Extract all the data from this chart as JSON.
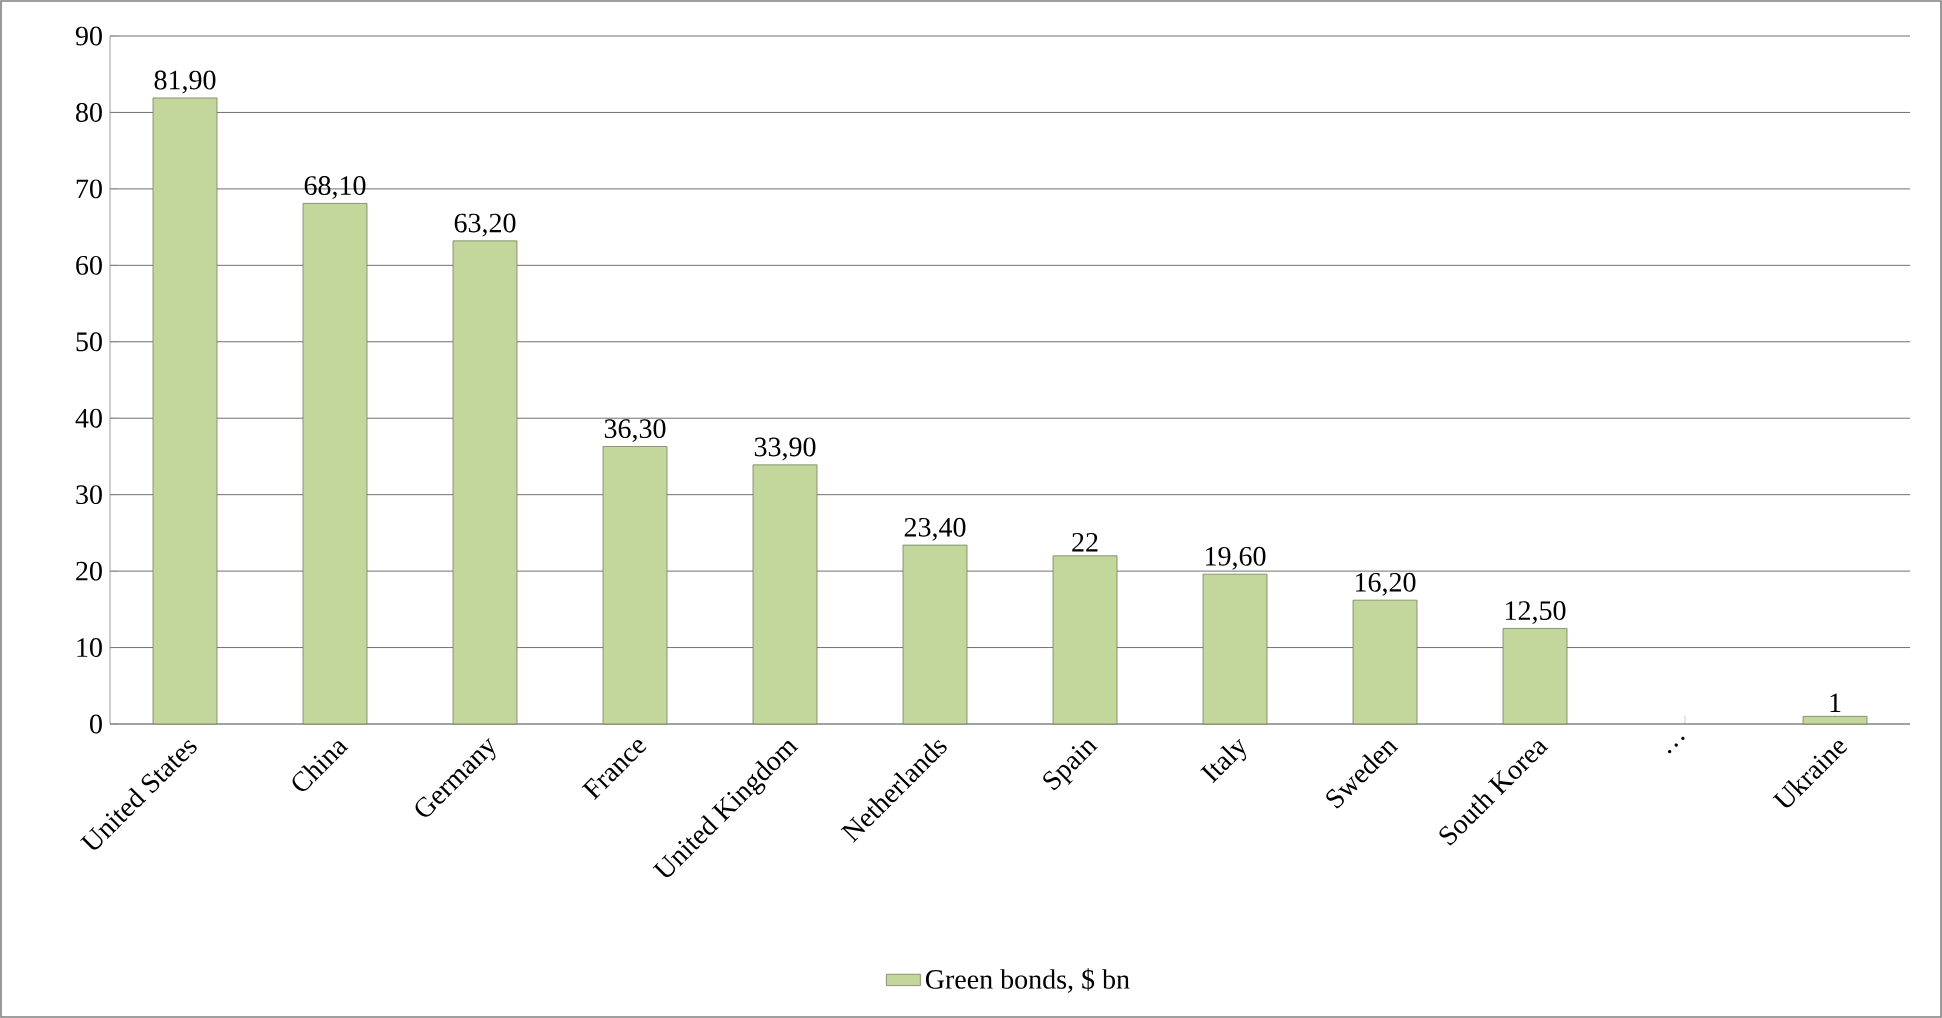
{
  "chart_data": {
    "type": "bar",
    "categories": [
      "United States",
      "China",
      "Germany",
      "France",
      "United Kingdom",
      "Netherlands",
      "Spain",
      "Italy",
      "Sweden",
      "South Korea",
      "…",
      "Ukraine"
    ],
    "series": [
      {
        "name": "Green bonds, $ bn",
        "color": "#c3d69b",
        "values": [
          81.9,
          68.1,
          63.2,
          36.3,
          33.9,
          23.4,
          22,
          19.6,
          16.2,
          12.5,
          null,
          1
        ],
        "value_labels": [
          "81,90",
          "68,10",
          "63,20",
          "36,30",
          "33,90",
          "23,40",
          "22",
          "19,60",
          "16,20",
          "12,50",
          null,
          "1"
        ]
      }
    ],
    "ylim": [
      0,
      90
    ],
    "yticks": [
      0,
      10,
      20,
      30,
      40,
      50,
      60,
      70,
      80,
      90
    ],
    "grid": "y",
    "legend": "bottom"
  }
}
